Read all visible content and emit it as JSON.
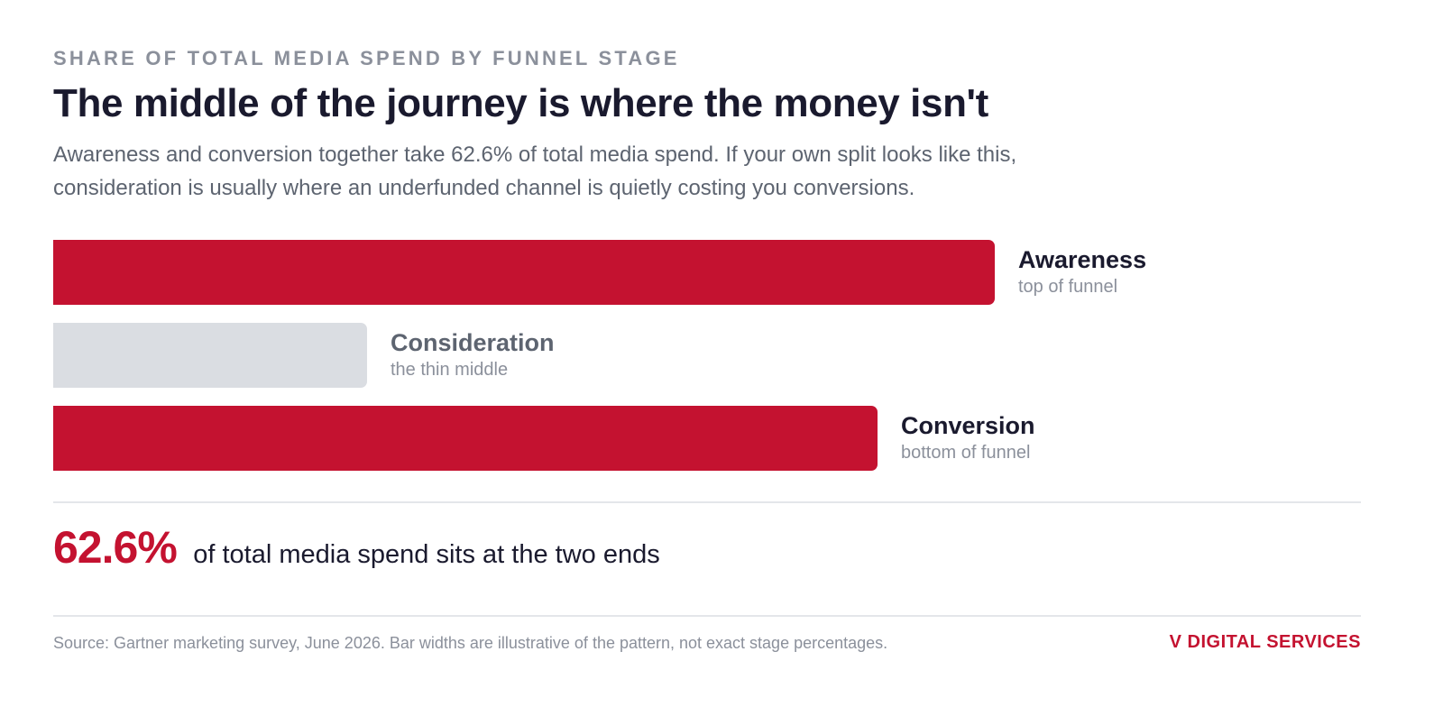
{
  "header": {
    "eyebrow": "SHARE OF TOTAL MEDIA SPEND BY FUNNEL STAGE",
    "title": "The middle of the journey is where the money isn't",
    "subtitle": "Awareness and conversion together take 62.6% of total media spend. If your own split looks like this, consideration is usually where an underfunded channel is quietly costing you conversions."
  },
  "chart_data": {
    "type": "bar",
    "orientation": "horizontal",
    "categories": [
      "Awareness",
      "Consideration",
      "Conversion"
    ],
    "notes": [
      "top of funnel",
      "the thin middle",
      "bottom of funnel"
    ],
    "values": [
      72,
      24,
      63
    ],
    "colors": [
      "#c41230",
      "#dadde2",
      "#c41230"
    ],
    "label_colors": [
      "#1a1a2e",
      "#5d6470",
      "#1a1a2e"
    ],
    "xlim": [
      0,
      100
    ],
    "grid": false,
    "legend": "none"
  },
  "stat": {
    "value": "62.6%",
    "text": "of total media spend sits at the two ends"
  },
  "footer": {
    "source": "Source: Gartner marketing survey, June 2026. Bar widths are illustrative of the pattern, not exact stage percentages.",
    "brand": "V DIGITAL SERVICES"
  }
}
